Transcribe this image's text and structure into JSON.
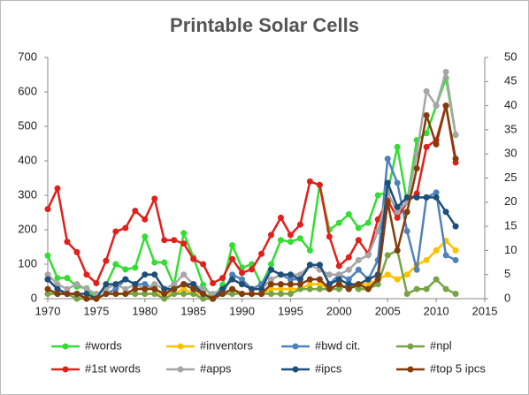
{
  "chart_data": {
    "type": "line",
    "title": "Printable Solar Cells",
    "x": [
      1970,
      1971,
      1972,
      1973,
      1974,
      1975,
      1976,
      1977,
      1978,
      1979,
      1980,
      1981,
      1982,
      1983,
      1984,
      1985,
      1986,
      1987,
      1988,
      1989,
      1990,
      1991,
      1992,
      1993,
      1994,
      1995,
      1996,
      1997,
      1998,
      1999,
      2000,
      2001,
      2002,
      2003,
      2004,
      2005,
      2006,
      2007,
      2008,
      2009,
      2010,
      2011,
      2012
    ],
    "xlim": [
      1970,
      2015
    ],
    "xticks": [
      1970,
      1975,
      1980,
      1985,
      1990,
      1995,
      2000,
      2005,
      2010,
      2015
    ],
    "ylim": [
      0,
      700
    ],
    "yticks": [
      0,
      100,
      200,
      300,
      400,
      500,
      600,
      700
    ],
    "y2lim": [
      0,
      50
    ],
    "y2ticks": [
      0,
      5,
      10,
      15,
      20,
      25,
      30,
      35,
      40,
      45,
      50
    ],
    "series": [
      {
        "name": "#words",
        "color": "#33dd33",
        "values": [
          125,
          60,
          60,
          35,
          30,
          0,
          40,
          100,
          85,
          90,
          180,
          105,
          105,
          40,
          190,
          120,
          40,
          0,
          40,
          155,
          90,
          100,
          40,
          100,
          170,
          165,
          175,
          140,
          330,
          200,
          220,
          245,
          205,
          220,
          300,
          310,
          440,
          280,
          460,
          480,
          560,
          640,
          475
        ]
      },
      {
        "name": "#inventors",
        "color": "#ffc000",
        "axis": "y2",
        "values": [
          1,
          1,
          1,
          1,
          0,
          0,
          1,
          1,
          1,
          1,
          1,
          1,
          1,
          1,
          2,
          1,
          1,
          0,
          1,
          2,
          1,
          1,
          1,
          2,
          2,
          2,
          2,
          3,
          3,
          2,
          3,
          2,
          3,
          3,
          4,
          5,
          4,
          5,
          7,
          8,
          10,
          12,
          10
        ]
      },
      {
        "name": "#bwd cit.",
        "color": "#4f81bd",
        "axis": "y2",
        "values": [
          4,
          2,
          1,
          1,
          0,
          0,
          1,
          2,
          4,
          3,
          3,
          2,
          1,
          2,
          3,
          3,
          1,
          0,
          1,
          5,
          4,
          2,
          3,
          6,
          5,
          4,
          4,
          7,
          7,
          3,
          5,
          4,
          6,
          4,
          8,
          29,
          24,
          14,
          6,
          21,
          22,
          9,
          8
        ]
      },
      {
        "name": "#npl",
        "color": "#77a345",
        "axis": "y2",
        "values": [
          1,
          1,
          1,
          0,
          0,
          0,
          1,
          1,
          1,
          1,
          1,
          1,
          0,
          1,
          1,
          1,
          0,
          0,
          1,
          1,
          1,
          1,
          1,
          1,
          1,
          1,
          2,
          2,
          2,
          2,
          2,
          3,
          2,
          2,
          3,
          9,
          10,
          1,
          2,
          2,
          4,
          2,
          1
        ]
      },
      {
        "name": "#1st words",
        "color": "#e0201b",
        "values": [
          260,
          320,
          165,
          135,
          70,
          45,
          110,
          195,
          205,
          255,
          230,
          290,
          170,
          170,
          160,
          115,
          100,
          45,
          60,
          115,
          75,
          85,
          130,
          185,
          235,
          185,
          215,
          340,
          330,
          180,
          95,
          120,
          170,
          130,
          230,
          285,
          235,
          280,
          305,
          440,
          460,
          560,
          395
        ]
      },
      {
        "name": "#apps",
        "color": "#a6a6a6",
        "axis": "y2",
        "values": [
          5,
          3,
          2,
          3,
          2,
          1,
          2,
          3,
          2,
          3,
          2,
          3,
          2,
          3,
          5,
          3,
          2,
          1,
          2,
          4,
          3,
          2,
          2,
          4,
          5,
          5,
          5,
          7,
          6,
          5,
          5,
          6,
          8,
          9,
          14,
          22,
          18,
          20,
          30,
          43,
          40,
          47,
          34
        ]
      },
      {
        "name": "#ipcs",
        "color": "#1f4e79",
        "axis": "y2",
        "values": [
          4,
          2,
          1,
          1,
          1,
          0,
          3,
          3,
          4,
          3,
          5,
          5,
          2,
          2,
          3,
          3,
          1,
          0,
          2,
          4,
          3,
          2,
          2,
          6,
          5,
          5,
          4,
          7,
          7,
          3,
          4,
          3,
          3,
          4,
          5,
          24,
          19,
          21,
          21,
          21,
          21,
          18,
          15
        ]
      },
      {
        "name": "#top 5 ipcs",
        "color": "#843c0c",
        "axis": "y2",
        "values": [
          2,
          1,
          1,
          1,
          0,
          0,
          1,
          1,
          1,
          2,
          2,
          2,
          1,
          2,
          3,
          2,
          1,
          0,
          1,
          2,
          1,
          1,
          1,
          3,
          3,
          3,
          3,
          4,
          4,
          2,
          3,
          2,
          3,
          2,
          4,
          20,
          10,
          18,
          27,
          38,
          32,
          40,
          29
        ]
      }
    ]
  }
}
